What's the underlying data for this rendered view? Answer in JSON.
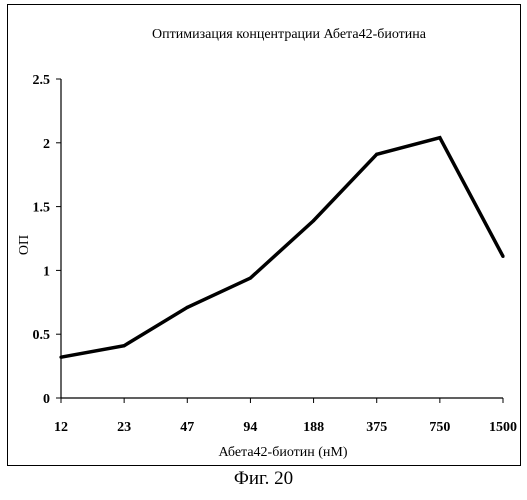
{
  "caption": "Фиг. 20",
  "chart_data": {
    "type": "line",
    "title": "Оптимизация концентрации Абета42-биотина",
    "xlabel": "Абета42-биотин (нМ)",
    "ylabel": "ОП",
    "categories": [
      "12",
      "23",
      "47",
      "94",
      "188",
      "375",
      "750",
      "1500"
    ],
    "series": [
      {
        "values": [
          0.32,
          0.41,
          0.71,
          0.94,
          1.39,
          1.91,
          2.04,
          1.11
        ]
      }
    ],
    "ylim": [
      0,
      2.5
    ],
    "yticks": [
      "0",
      "0.5",
      "1",
      "1.5",
      "2",
      "2.5"
    ],
    "ytick_values": [
      0,
      0.5,
      1,
      1.5,
      2,
      2.5
    ],
    "grid": false,
    "legend": "none",
    "line_color": "#000000"
  }
}
